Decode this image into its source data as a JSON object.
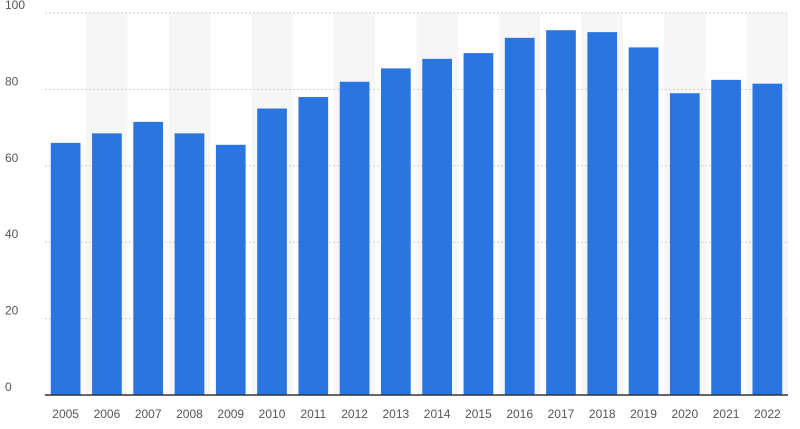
{
  "chart_data": {
    "type": "bar",
    "categories": [
      "2005",
      "2006",
      "2007",
      "2008",
      "2009",
      "2010",
      "2011",
      "2012",
      "2013",
      "2014",
      "2015",
      "2016",
      "2017",
      "2018",
      "2019",
      "2020",
      "2021",
      "2022"
    ],
    "series": [
      {
        "values": [
          66,
          68.5,
          71.5,
          68.5,
          65.5,
          75,
          78,
          82,
          85.5,
          88,
          89.5,
          93.5,
          95.5,
          95,
          91,
          79,
          82.5,
          81.5
        ],
        "color": "#2a75e0"
      }
    ],
    "title": "",
    "xlabel": "",
    "ylabel": "",
    "ylim": [
      0,
      100
    ],
    "yticks": [
      "0",
      "20",
      "40",
      "60",
      "80",
      "100"
    ],
    "grid": true,
    "legend": "none",
    "alternating_column_bands": true
  }
}
